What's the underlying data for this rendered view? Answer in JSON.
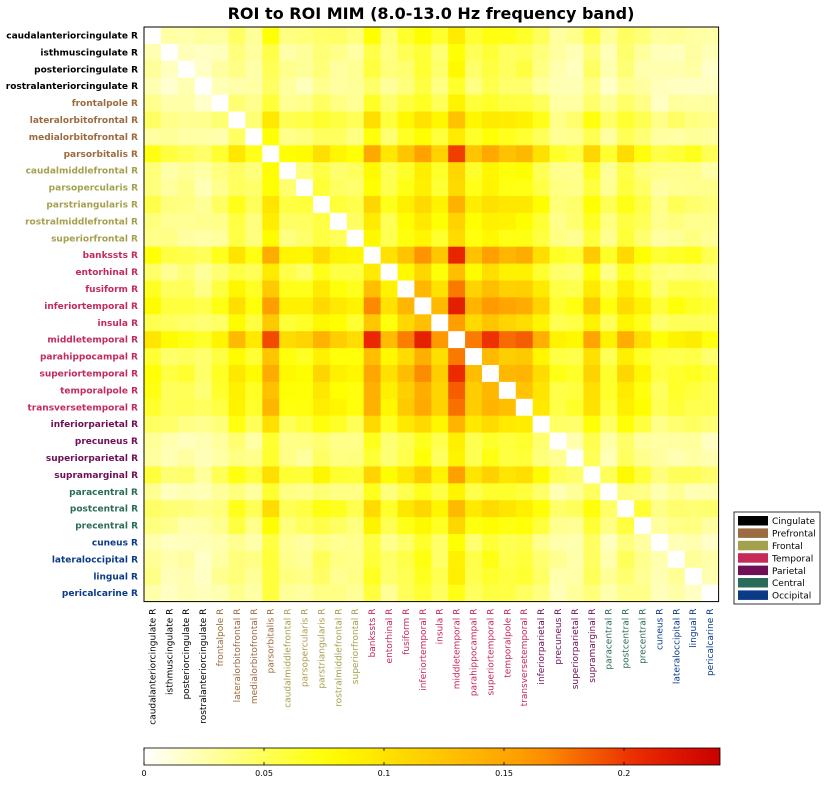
{
  "chart_data": {
    "type": "heatmap",
    "title": "ROI to ROI MIM (8.0-13.0 Hz frequency band)",
    "rows": [
      {
        "label": "caudalanteriorcingulate R",
        "group": "Cingulate"
      },
      {
        "label": "isthmuscingulate R",
        "group": "Cingulate"
      },
      {
        "label": "posteriorcingulate R",
        "group": "Cingulate"
      },
      {
        "label": "rostralanteriorcingulate R",
        "group": "Cingulate"
      },
      {
        "label": "frontalpole R",
        "group": "Prefrontal"
      },
      {
        "label": "lateralorbitofrontal R",
        "group": "Prefrontal"
      },
      {
        "label": "medialorbitofrontal R",
        "group": "Prefrontal"
      },
      {
        "label": "parsorbitalis R",
        "group": "Prefrontal"
      },
      {
        "label": "caudalmiddlefrontal R",
        "group": "Frontal"
      },
      {
        "label": "parsopercularis R",
        "group": "Frontal"
      },
      {
        "label": "parstriangularis R",
        "group": "Frontal"
      },
      {
        "label": "rostralmiddlefrontal R",
        "group": "Frontal"
      },
      {
        "label": "superiorfrontal R",
        "group": "Frontal"
      },
      {
        "label": "bankssts R",
        "group": "Temporal"
      },
      {
        "label": "entorhinal R",
        "group": "Temporal"
      },
      {
        "label": "fusiform R",
        "group": "Temporal"
      },
      {
        "label": "inferiortemporal R",
        "group": "Temporal"
      },
      {
        "label": "insula R",
        "group": "Temporal"
      },
      {
        "label": "middletemporal R",
        "group": "Temporal"
      },
      {
        "label": "parahippocampal R",
        "group": "Temporal"
      },
      {
        "label": "superiortemporal R",
        "group": "Temporal"
      },
      {
        "label": "temporalpole R",
        "group": "Temporal"
      },
      {
        "label": "transversetemporal R",
        "group": "Temporal"
      },
      {
        "label": "inferiorparietal R",
        "group": "Parietal"
      },
      {
        "label": "precuneus R",
        "group": "Parietal"
      },
      {
        "label": "superiorparietal R",
        "group": "Parietal"
      },
      {
        "label": "supramarginal R",
        "group": "Parietal"
      },
      {
        "label": "paracentral R",
        "group": "Central"
      },
      {
        "label": "postcentral R",
        "group": "Central"
      },
      {
        "label": "precentral R",
        "group": "Central"
      },
      {
        "label": "cuneus R",
        "group": "Occipital"
      },
      {
        "label": "lateraloccipital R",
        "group": "Occipital"
      },
      {
        "label": "lingual R",
        "group": "Occipital"
      },
      {
        "label": "pericalcarine R",
        "group": "Occipital"
      }
    ],
    "groups": [
      {
        "name": "Cingulate",
        "color": "#000000"
      },
      {
        "name": "Prefrontal",
        "color": "#9c6b3f"
      },
      {
        "name": "Frontal",
        "color": "#a5a04d"
      },
      {
        "name": "Temporal",
        "color": "#c42a5a"
      },
      {
        "name": "Parietal",
        "color": "#6e0f57"
      },
      {
        "name": "Central",
        "color": "#2b6b5a"
      },
      {
        "name": "Occipital",
        "color": "#0b3a87"
      }
    ],
    "colorbar": {
      "range": [
        0,
        0.24
      ],
      "ticks": [
        0,
        0.05,
        0.1,
        0.15,
        0.2
      ],
      "tick_labels": [
        "0",
        "0.05",
        "0.1",
        "0.15",
        "0.2"
      ],
      "colormap": "white-yellow-orange-red"
    },
    "row_strength": [
      0.045,
      0.035,
      0.035,
      0.03,
      0.04,
      0.06,
      0.045,
      0.09,
      0.05,
      0.05,
      0.065,
      0.055,
      0.05,
      0.095,
      0.06,
      0.08,
      0.1,
      0.075,
      0.125,
      0.08,
      0.095,
      0.085,
      0.085,
      0.065,
      0.04,
      0.04,
      0.07,
      0.04,
      0.065,
      0.05,
      0.035,
      0.04,
      0.04,
      0.035
    ],
    "baseline": 0.058
  }
}
